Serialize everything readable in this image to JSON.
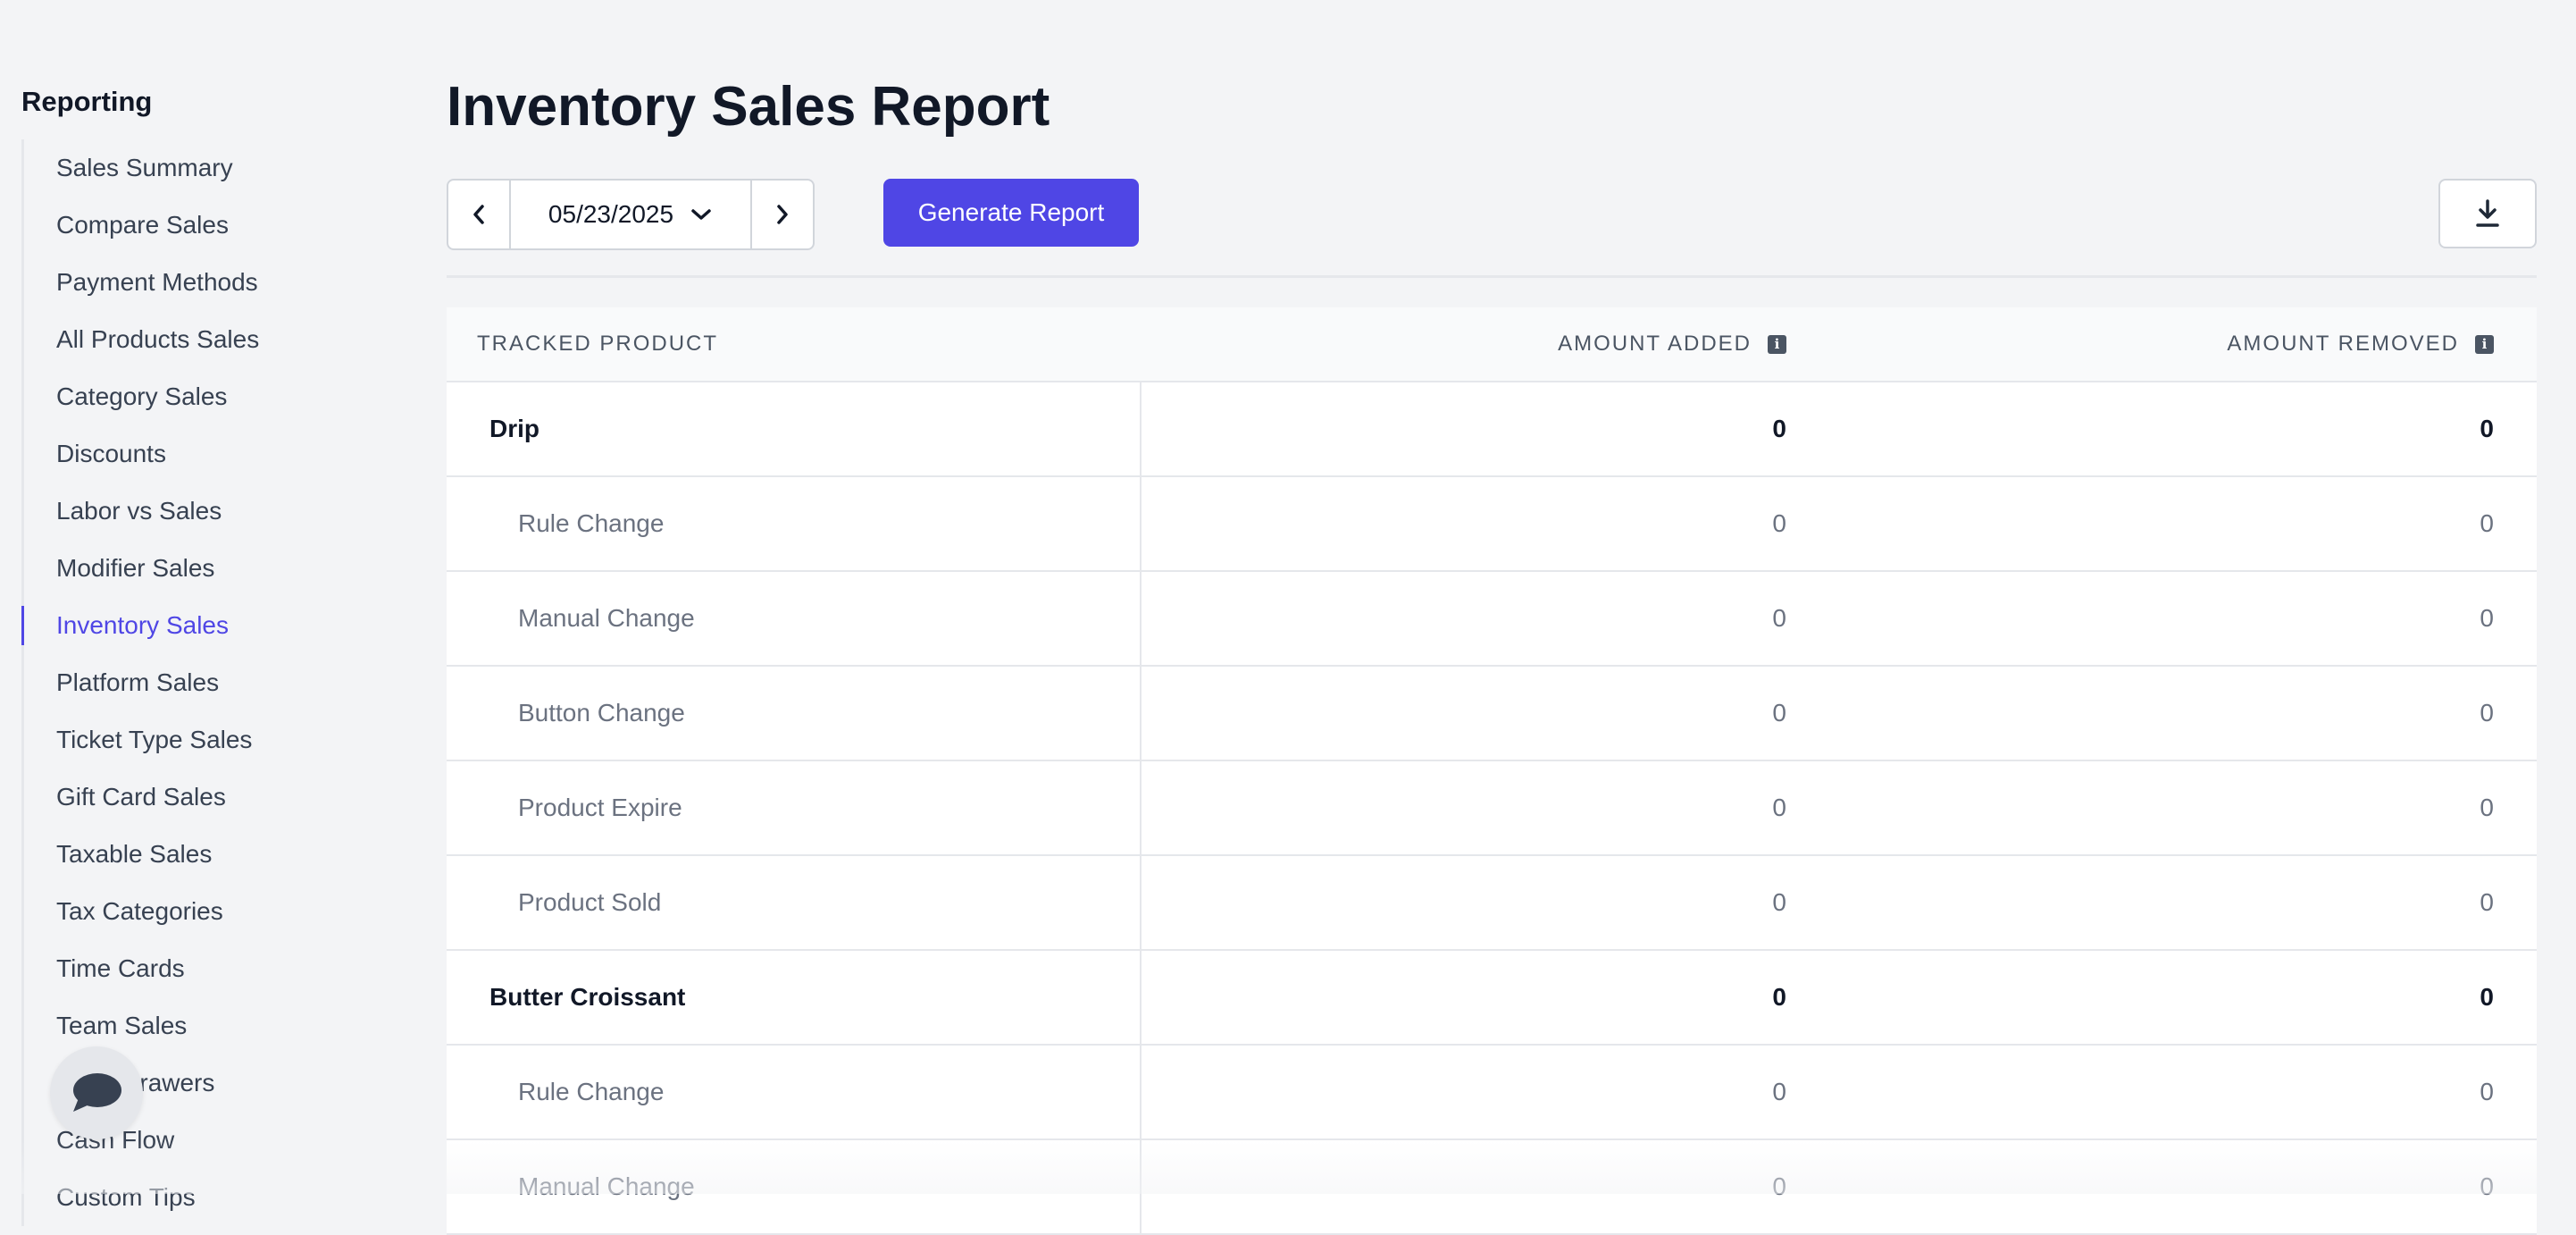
{
  "sidebar": {
    "title": "Reporting",
    "items": [
      {
        "label": "Sales Summary"
      },
      {
        "label": "Compare Sales"
      },
      {
        "label": "Payment Methods"
      },
      {
        "label": "All Products Sales"
      },
      {
        "label": "Category Sales"
      },
      {
        "label": "Discounts"
      },
      {
        "label": "Labor vs Sales"
      },
      {
        "label": "Modifier Sales"
      },
      {
        "label": "Inventory Sales",
        "active": true
      },
      {
        "label": "Platform Sales"
      },
      {
        "label": "Ticket Type Sales"
      },
      {
        "label": "Gift Card Sales"
      },
      {
        "label": "Taxable Sales"
      },
      {
        "label": "Tax Categories"
      },
      {
        "label": "Time Cards"
      },
      {
        "label": "Team Sales"
      },
      {
        "label": "Cash Drawers"
      },
      {
        "label": "Cash Flow"
      },
      {
        "label": "Custom Tips"
      }
    ]
  },
  "main": {
    "title": "Inventory Sales Report",
    "date_value": "05/23/2025",
    "generate_label": "Generate Report"
  },
  "table": {
    "headers": [
      "TRACKED PRODUCT",
      "AMOUNT ADDED",
      "AMOUNT REMOVED"
    ],
    "rows": [
      {
        "type": "parent",
        "name": "Drip",
        "added": "0",
        "removed": "0"
      },
      {
        "type": "child",
        "name": "Rule Change",
        "added": "0",
        "removed": "0"
      },
      {
        "type": "child",
        "name": "Manual Change",
        "added": "0",
        "removed": "0"
      },
      {
        "type": "child",
        "name": "Button Change",
        "added": "0",
        "removed": "0"
      },
      {
        "type": "child",
        "name": "Product Expire",
        "added": "0",
        "removed": "0"
      },
      {
        "type": "child",
        "name": "Product Sold",
        "added": "0",
        "removed": "0"
      },
      {
        "type": "parent",
        "name": "Butter Croissant",
        "added": "0",
        "removed": "0"
      },
      {
        "type": "child",
        "name": "Rule Change",
        "added": "0",
        "removed": "0"
      },
      {
        "type": "child",
        "name": "Manual Change",
        "added": "0",
        "removed": "0"
      }
    ]
  },
  "colors": {
    "accent": "#4f46e5",
    "background": "#f3f4f6",
    "muted_text": "#6b7280"
  },
  "icons": [
    "chevron-left-icon",
    "chevron-down-icon",
    "chevron-right-icon",
    "download-icon",
    "info-icon",
    "chat-icon"
  ]
}
